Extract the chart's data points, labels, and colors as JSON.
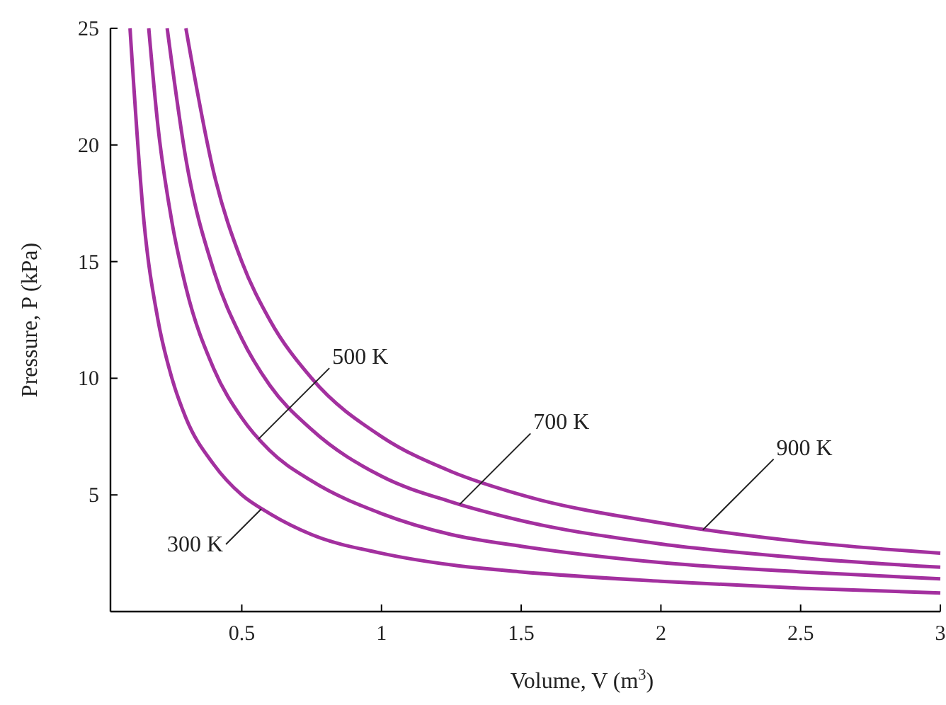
{
  "chart_data": {
    "type": "line",
    "xlabel": "Volume, V (m$^{3}$)",
    "ylabel": "Pressure, P (kPa)",
    "xlim": [
      0.03,
      3
    ],
    "ylim": [
      0,
      25
    ],
    "xticks": [
      0.5,
      1,
      1.5,
      2,
      2.5,
      3
    ],
    "yticks": [
      5,
      10,
      15,
      20,
      25
    ],
    "grid": false,
    "marker": "none",
    "line_style": "solid",
    "series": [
      {
        "color": "#a3309f",
        "x": [
          0.1,
          0.15,
          0.2,
          0.25,
          0.3,
          0.4,
          0.5,
          0.6,
          0.75,
          1,
          1.25,
          1.5,
          2,
          2.5,
          3
        ],
        "values": [
          25,
          16.7,
          12.5,
          10,
          8.3,
          6.3,
          5,
          4.2,
          3.3,
          2.5,
          2,
          1.7,
          1.3,
          1,
          0.8
        ]
      },
      {
        "color": "#a3309f",
        "x": [
          0.167,
          0.2,
          0.25,
          0.3,
          0.4,
          0.5,
          0.6,
          0.75,
          1,
          1.25,
          1.5,
          2,
          2.5,
          3
        ],
        "values": [
          25,
          20.8,
          16.7,
          13.9,
          10.4,
          8.3,
          6.9,
          5.6,
          4.2,
          3.3,
          2.8,
          2.1,
          1.7,
          1.4
        ]
      },
      {
        "color": "#a3309f",
        "x": [
          0.233,
          0.3,
          0.4,
          0.5,
          0.6,
          0.75,
          1,
          1.25,
          1.5,
          2,
          2.5,
          3
        ],
        "values": [
          25,
          19.4,
          14.6,
          11.7,
          9.7,
          7.8,
          5.8,
          4.7,
          3.9,
          2.9,
          2.3,
          1.9
        ]
      },
      {
        "color": "#a3309f",
        "x": [
          0.3,
          0.4,
          0.5,
          0.6,
          0.75,
          1,
          1.25,
          1.5,
          2,
          2.5,
          3
        ],
        "values": [
          25,
          18.8,
          15,
          12.5,
          10,
          7.5,
          6,
          5,
          3.8,
          3,
          2.5
        ]
      }
    ],
    "annotations": [
      {
        "text": "300 K",
        "x": 0.57,
        "y": 4.4
      },
      {
        "text": "500 K",
        "x": 0.56,
        "y": 7.4
      },
      {
        "text": "700 K",
        "x": 1.28,
        "y": 4.6
      },
      {
        "text": "900 K",
        "x": 2.15,
        "y": 3.5
      }
    ]
  }
}
